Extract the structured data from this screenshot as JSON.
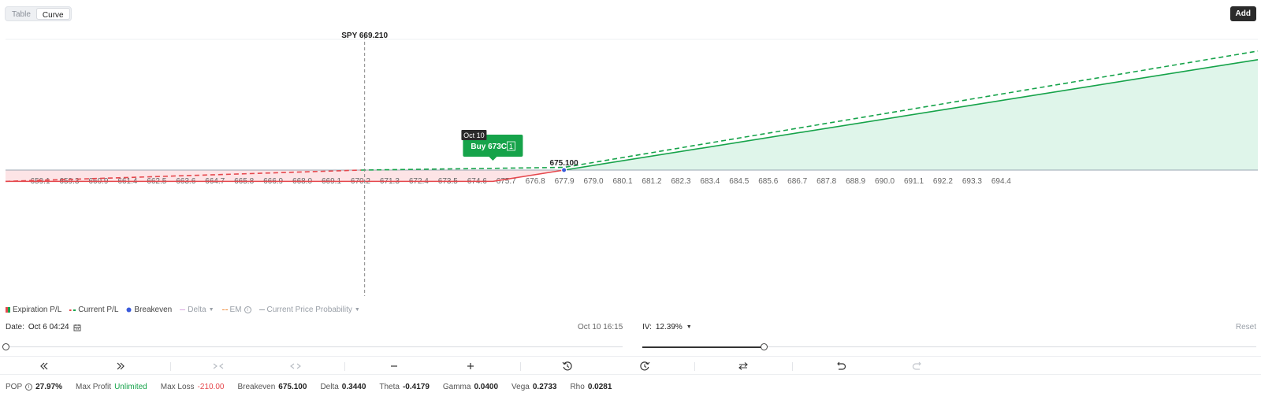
{
  "view_tabs": [
    {
      "label": "Table",
      "active": false
    },
    {
      "label": "Curve",
      "active": true
    }
  ],
  "add_label": "Add",
  "chart_data": {
    "type": "line",
    "title": "",
    "spot_label": "SPY 669.210",
    "spot_price": 669.21,
    "xlim": [
      658.6,
      695.6
    ],
    "x_ticks": [
      "659.1",
      "659.3",
      "660.9",
      "661.4",
      "662.5",
      "663.6",
      "664.7",
      "665.8",
      "666.9",
      "668.0",
      "669.1",
      "670.2",
      "671.3",
      "672.4",
      "673.5",
      "674.6",
      "675.7",
      "676.8",
      "677.9",
      "679.0",
      "680.1",
      "681.2",
      "682.3",
      "683.4",
      "684.5",
      "685.6",
      "686.7",
      "687.8",
      "688.9",
      "690.0",
      "691.1",
      "692.2",
      "693.3",
      "694.4"
    ],
    "breakeven": 675.1,
    "breakeven_label": "675.100",
    "y_scale": "P/L, units not shown",
    "series": [
      {
        "name": "Expiration P/L",
        "style": "solid",
        "x": [
          658.6,
          673.0,
          675.1,
          695.6
        ],
        "y": [
          -210,
          -210,
          0,
          2050
        ]
      },
      {
        "name": "Current P/L",
        "style": "dashed",
        "x": [
          658.6,
          669.1,
          675.1,
          695.6
        ],
        "y": [
          -210,
          0,
          50,
          2210
        ]
      }
    ],
    "annotation": {
      "date_tag": "Oct 10",
      "label": "Buy 673C",
      "qty": "1",
      "strike": 673
    }
  },
  "legend": [
    {
      "label": "Expiration P/L",
      "kind": "expiration"
    },
    {
      "label": "Current P/L",
      "kind": "current"
    },
    {
      "label": "Breakeven",
      "kind": "breakeven"
    },
    {
      "label": "Delta",
      "kind": "delta"
    },
    {
      "label": "EM",
      "kind": "em"
    },
    {
      "label": "Current Price Probability",
      "kind": "prob"
    }
  ],
  "date": {
    "label": "Date:",
    "value": "Oct 6 04:24",
    "end": "Oct 10 16:15",
    "progress": 0
  },
  "iv": {
    "label": "IV:",
    "value": "12.39%",
    "progress": 1.0
  },
  "reset_label": "Reset",
  "toolbar_icons": [
    "double-left-icon",
    "double-right-icon",
    "collapse-icon",
    "expand-icon",
    "minus-icon",
    "plus-icon",
    "history-icon",
    "time-forward-icon",
    "swap-icon",
    "undo-icon",
    "redo-icon"
  ],
  "stats": {
    "pop": {
      "label": "POP",
      "value": "27.97%"
    },
    "max_profit": {
      "label": "Max Profit",
      "value": "Unlimited"
    },
    "max_loss": {
      "label": "Max Loss",
      "value": "-210.00"
    },
    "breakeven": {
      "label": "Breakeven",
      "value": "675.100"
    },
    "delta": {
      "label": "Delta",
      "value": "0.3440"
    },
    "theta": {
      "label": "Theta",
      "value": "-0.4179"
    },
    "gamma": {
      "label": "Gamma",
      "value": "0.0400"
    },
    "vega": {
      "label": "Vega",
      "value": "0.2733"
    },
    "rho": {
      "label": "Rho",
      "value": "0.0281"
    }
  },
  "colors": {
    "profit": "#16a34a",
    "loss": "#e5484d",
    "profit_fill": "#dff5ea",
    "loss_fill": "#fde4e6",
    "breakeven": "#3b5bdb"
  }
}
